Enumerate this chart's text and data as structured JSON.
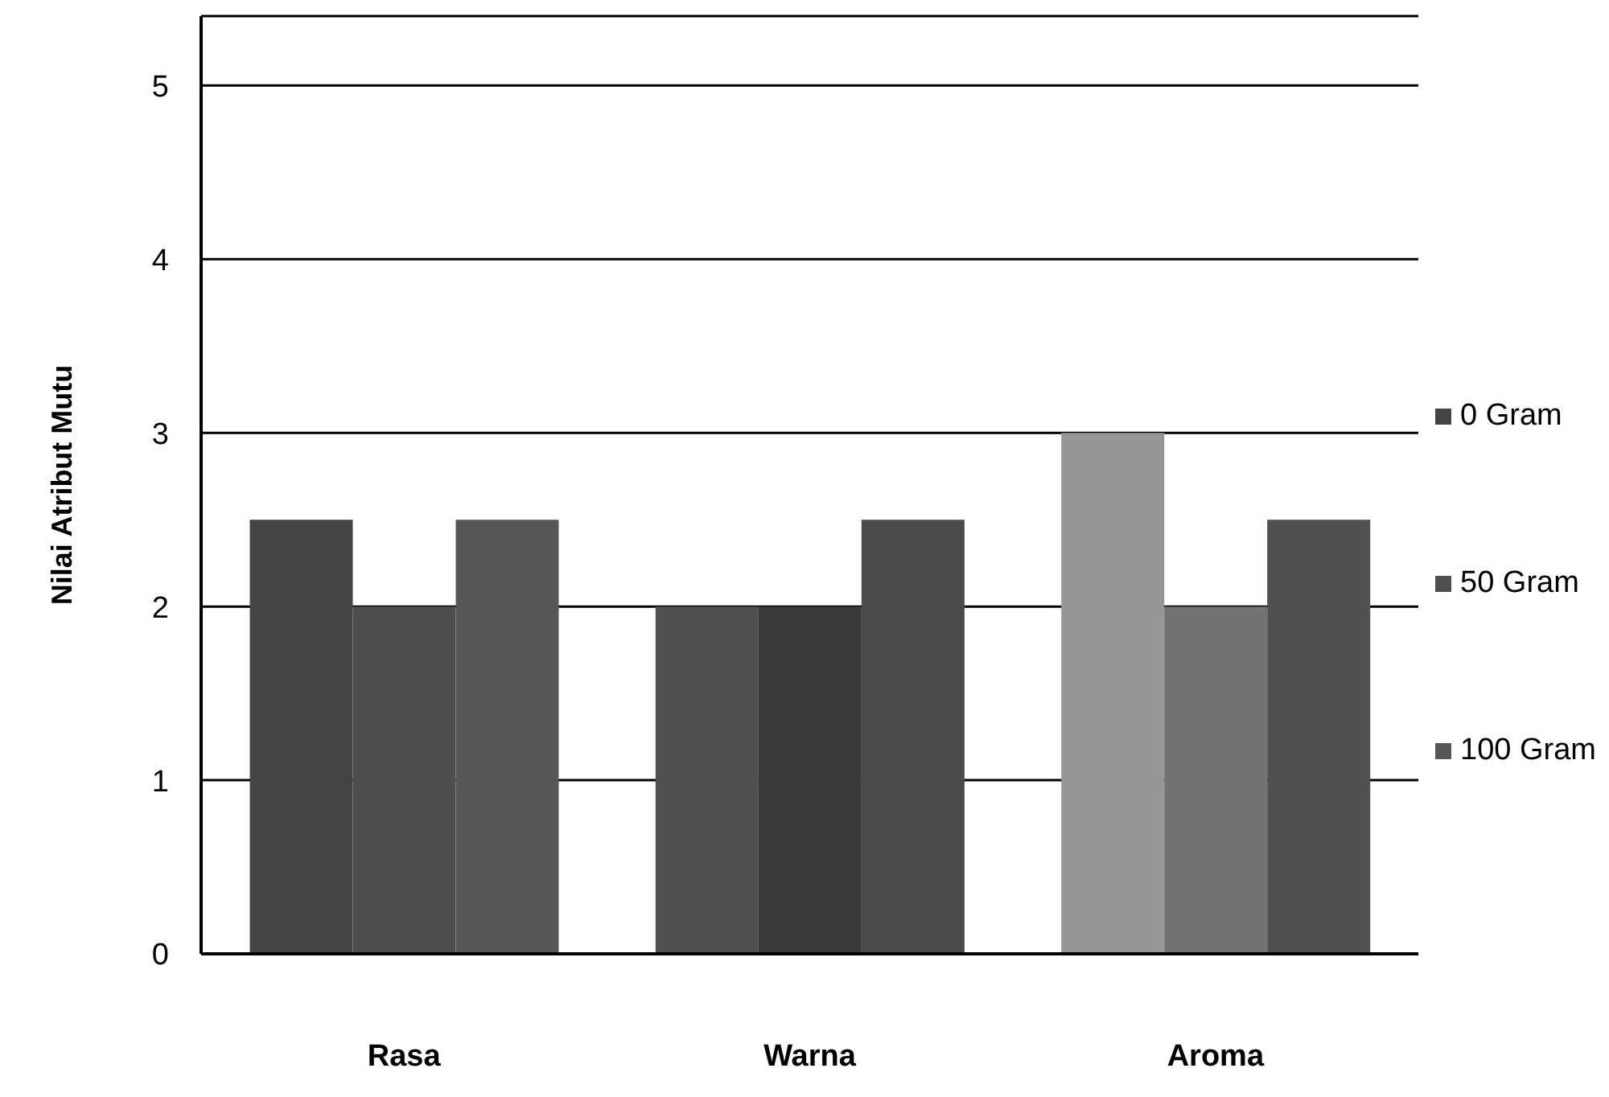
{
  "chart_data": {
    "type": "bar",
    "ylabel": "Nilai Atribut Mutu",
    "categories": [
      "Rasa",
      "Warna",
      "Aroma"
    ],
    "series": [
      {
        "name": "0 Gram",
        "colors": [
          "#444444",
          "#505050",
          "#969696"
        ],
        "values": [
          2.5,
          2,
          3
        ]
      },
      {
        "name": "50 Gram",
        "colors": [
          "#4f4f4f",
          "#3a3a3a",
          "#737373"
        ],
        "values": [
          2,
          2,
          2
        ]
      },
      {
        "name": "100 Gram",
        "colors": [
          "#575757",
          "#4b4b4b",
          "#505050"
        ],
        "values": [
          2.5,
          2.5,
          2.5
        ]
      }
    ],
    "ylim": [
      0,
      5.4
    ],
    "yticks": [
      0,
      1,
      2,
      3,
      4,
      5
    ],
    "grid": "y",
    "legend": "right"
  }
}
